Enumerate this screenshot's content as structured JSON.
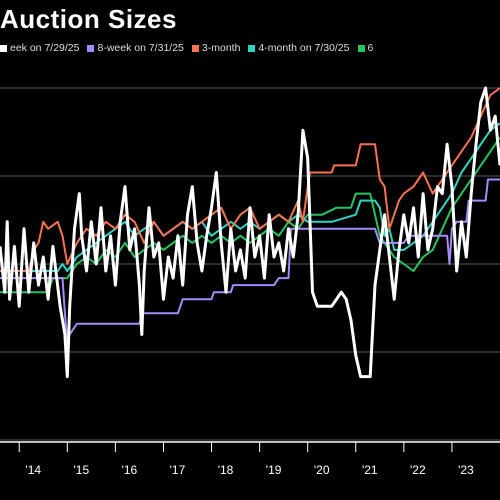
{
  "chart_data": {
    "type": "line",
    "title": "Auction Sizes",
    "xlabel": "",
    "ylabel": "",
    "x_ticks": [
      "'14",
      "'15",
      "'16",
      "'17",
      "'18",
      "'19",
      "'20",
      "'21",
      "'22",
      "'23"
    ],
    "xlim": [
      2013.6,
      2024.0
    ],
    "ylim": [
      0,
      100
    ],
    "grid": "horizontal",
    "legend_position": "top",
    "series": [
      {
        "name": "eek on 7/29/25",
        "color": "#ffffff",
        "points": [
          [
            2013.6,
            55
          ],
          [
            2013.7,
            42
          ],
          [
            2013.75,
            62
          ],
          [
            2013.8,
            40
          ],
          [
            2013.9,
            55
          ],
          [
            2014.0,
            38
          ],
          [
            2014.1,
            60
          ],
          [
            2014.2,
            42
          ],
          [
            2014.3,
            56
          ],
          [
            2014.4,
            44
          ],
          [
            2014.5,
            52
          ],
          [
            2014.6,
            40
          ],
          [
            2014.7,
            55
          ],
          [
            2014.85,
            38
          ],
          [
            2014.95,
            30
          ],
          [
            2015.0,
            18
          ],
          [
            2015.05,
            38
          ],
          [
            2015.15,
            60
          ],
          [
            2015.25,
            70
          ],
          [
            2015.3,
            58
          ],
          [
            2015.4,
            48
          ],
          [
            2015.5,
            62
          ],
          [
            2015.6,
            50
          ],
          [
            2015.7,
            66
          ],
          [
            2015.8,
            48
          ],
          [
            2015.9,
            58
          ],
          [
            2016.0,
            44
          ],
          [
            2016.1,
            62
          ],
          [
            2016.2,
            72
          ],
          [
            2016.3,
            54
          ],
          [
            2016.4,
            60
          ],
          [
            2016.5,
            44
          ],
          [
            2016.55,
            30
          ],
          [
            2016.6,
            48
          ],
          [
            2016.7,
            66
          ],
          [
            2016.8,
            52
          ],
          [
            2016.9,
            56
          ],
          [
            2017.0,
            40
          ],
          [
            2017.1,
            52
          ],
          [
            2017.2,
            46
          ],
          [
            2017.3,
            58
          ],
          [
            2017.4,
            44
          ],
          [
            2017.5,
            64
          ],
          [
            2017.6,
            72
          ],
          [
            2017.7,
            56
          ],
          [
            2017.8,
            48
          ],
          [
            2017.9,
            58
          ],
          [
            2018.0,
            66
          ],
          [
            2018.1,
            76
          ],
          [
            2018.2,
            56
          ],
          [
            2018.3,
            42
          ],
          [
            2018.4,
            60
          ],
          [
            2018.5,
            48
          ],
          [
            2018.6,
            54
          ],
          [
            2018.7,
            46
          ],
          [
            2018.8,
            66
          ],
          [
            2018.9,
            52
          ],
          [
            2019.0,
            58
          ],
          [
            2019.1,
            46
          ],
          [
            2019.2,
            64
          ],
          [
            2019.3,
            52
          ],
          [
            2019.4,
            56
          ],
          [
            2019.5,
            48
          ],
          [
            2019.6,
            60
          ],
          [
            2019.7,
            52
          ],
          [
            2019.8,
            64
          ],
          [
            2019.9,
            88
          ],
          [
            2020.0,
            80
          ],
          [
            2020.1,
            42
          ],
          [
            2020.2,
            38
          ],
          [
            2020.3,
            38
          ],
          [
            2020.5,
            38
          ],
          [
            2020.7,
            42
          ],
          [
            2020.8,
            40
          ],
          [
            2020.9,
            34
          ],
          [
            2021.0,
            24
          ],
          [
            2021.1,
            18
          ],
          [
            2021.3,
            18
          ],
          [
            2021.4,
            44
          ],
          [
            2021.6,
            64
          ],
          [
            2021.7,
            52
          ],
          [
            2021.8,
            40
          ],
          [
            2021.9,
            54
          ],
          [
            2022.0,
            64
          ],
          [
            2022.1,
            56
          ],
          [
            2022.2,
            66
          ],
          [
            2022.3,
            52
          ],
          [
            2022.4,
            70
          ],
          [
            2022.5,
            54
          ],
          [
            2022.6,
            60
          ],
          [
            2022.7,
            72
          ],
          [
            2022.8,
            70
          ],
          [
            2022.9,
            84
          ],
          [
            2023.0,
            72
          ],
          [
            2023.1,
            48
          ],
          [
            2023.2,
            62
          ],
          [
            2023.3,
            52
          ],
          [
            2023.4,
            70
          ],
          [
            2023.5,
            84
          ],
          [
            2023.6,
            96
          ],
          [
            2023.7,
            100
          ],
          [
            2023.8,
            88
          ],
          [
            2023.9,
            92
          ],
          [
            2024.0,
            78
          ]
        ]
      },
      {
        "name": "8-week on 7/31/25",
        "color": "#a78bfa",
        "points": [
          [
            2013.6,
            46
          ],
          [
            2014.9,
            46
          ],
          [
            2014.95,
            36
          ],
          [
            2015.0,
            28
          ],
          [
            2015.05,
            30
          ],
          [
            2015.2,
            33
          ],
          [
            2016.5,
            33
          ],
          [
            2016.55,
            36
          ],
          [
            2017.3,
            36
          ],
          [
            2017.4,
            40
          ],
          [
            2018.0,
            40
          ],
          [
            2018.05,
            42
          ],
          [
            2018.4,
            42
          ],
          [
            2018.45,
            44
          ],
          [
            2019.3,
            44
          ],
          [
            2019.4,
            46
          ],
          [
            2019.6,
            46
          ],
          [
            2019.65,
            60
          ],
          [
            2020.0,
            60
          ],
          [
            2021.4,
            60
          ],
          [
            2021.5,
            56
          ],
          [
            2022.0,
            56
          ],
          [
            2022.1,
            58
          ],
          [
            2022.9,
            58
          ],
          [
            2022.95,
            50
          ],
          [
            2023.0,
            60
          ],
          [
            2023.1,
            62
          ],
          [
            2023.3,
            62
          ],
          [
            2023.35,
            68
          ],
          [
            2023.7,
            68
          ],
          [
            2023.75,
            74
          ],
          [
            2024.0,
            74
          ]
        ]
      },
      {
        "name": "3-month",
        "color": "#f97352",
        "points": [
          [
            2013.6,
            48
          ],
          [
            2014.2,
            48
          ],
          [
            2014.3,
            54
          ],
          [
            2014.4,
            56
          ],
          [
            2014.5,
            62
          ],
          [
            2014.6,
            60
          ],
          [
            2014.8,
            62
          ],
          [
            2014.9,
            58
          ],
          [
            2015.0,
            50
          ],
          [
            2015.2,
            56
          ],
          [
            2015.4,
            60
          ],
          [
            2015.6,
            58
          ],
          [
            2015.8,
            62
          ],
          [
            2016.0,
            60
          ],
          [
            2016.2,
            64
          ],
          [
            2016.4,
            62
          ],
          [
            2016.6,
            56
          ],
          [
            2016.8,
            62
          ],
          [
            2017.0,
            58
          ],
          [
            2017.2,
            60
          ],
          [
            2017.4,
            62
          ],
          [
            2017.6,
            60
          ],
          [
            2017.8,
            62
          ],
          [
            2018.0,
            64
          ],
          [
            2018.2,
            66
          ],
          [
            2018.4,
            60
          ],
          [
            2018.6,
            64
          ],
          [
            2018.8,
            66
          ],
          [
            2019.0,
            60
          ],
          [
            2019.2,
            62
          ],
          [
            2019.4,
            64
          ],
          [
            2019.6,
            62
          ],
          [
            2019.8,
            68
          ],
          [
            2019.9,
            62
          ],
          [
            2020.0,
            72
          ],
          [
            2020.05,
            76
          ],
          [
            2020.5,
            76
          ],
          [
            2020.55,
            78
          ],
          [
            2021.0,
            78
          ],
          [
            2021.1,
            84
          ],
          [
            2021.4,
            84
          ],
          [
            2021.5,
            74
          ],
          [
            2021.6,
            72
          ],
          [
            2021.7,
            60
          ],
          [
            2021.8,
            64
          ],
          [
            2021.9,
            68
          ],
          [
            2022.0,
            70
          ],
          [
            2022.2,
            72
          ],
          [
            2022.4,
            76
          ],
          [
            2022.6,
            70
          ],
          [
            2022.8,
            74
          ],
          [
            2023.0,
            78
          ],
          [
            2023.2,
            82
          ],
          [
            2023.4,
            86
          ],
          [
            2023.6,
            92
          ],
          [
            2023.8,
            98
          ],
          [
            2024.0,
            102
          ]
        ]
      },
      {
        "name": "4-month on 7/30/25",
        "color": "#2dd4bf",
        "points": [
          [
            2013.6,
            48
          ],
          [
            2014.8,
            48
          ],
          [
            2014.9,
            50
          ],
          [
            2015.0,
            48
          ],
          [
            2015.2,
            52
          ],
          [
            2015.4,
            54
          ],
          [
            2015.6,
            56
          ],
          [
            2015.8,
            58
          ],
          [
            2016.0,
            60
          ],
          [
            2016.2,
            62
          ],
          [
            2016.4,
            58
          ],
          [
            2016.6,
            60
          ],
          [
            2016.8,
            62
          ],
          [
            2017.0,
            58
          ],
          [
            2017.2,
            60
          ],
          [
            2017.4,
            62
          ],
          [
            2017.6,
            60
          ],
          [
            2017.8,
            62
          ],
          [
            2018.0,
            58
          ],
          [
            2018.2,
            60
          ],
          [
            2018.4,
            62
          ],
          [
            2018.6,
            60
          ],
          [
            2018.8,
            62
          ],
          [
            2019.0,
            60
          ],
          [
            2019.2,
            62
          ],
          [
            2019.4,
            64
          ],
          [
            2019.6,
            62
          ],
          [
            2019.8,
            64
          ],
          [
            2020.0,
            62
          ],
          [
            2020.5,
            62
          ],
          [
            2021.0,
            64
          ],
          [
            2021.1,
            68
          ],
          [
            2021.4,
            68
          ],
          [
            2021.5,
            66
          ],
          [
            2021.6,
            58
          ],
          [
            2021.7,
            60
          ],
          [
            2021.8,
            54
          ],
          [
            2022.0,
            54
          ],
          [
            2022.2,
            56
          ],
          [
            2022.4,
            58
          ],
          [
            2022.6,
            62
          ],
          [
            2022.8,
            66
          ],
          [
            2023.0,
            70
          ],
          [
            2023.2,
            76
          ],
          [
            2023.4,
            80
          ],
          [
            2023.6,
            84
          ],
          [
            2023.8,
            88
          ],
          [
            2024.0,
            90
          ]
        ]
      },
      {
        "name": "6",
        "color": "#22c55e",
        "points": [
          [
            2013.6,
            42
          ],
          [
            2014.6,
            42
          ],
          [
            2014.7,
            46
          ],
          [
            2015.0,
            46
          ],
          [
            2015.2,
            50
          ],
          [
            2015.4,
            52
          ],
          [
            2015.6,
            50
          ],
          [
            2015.8,
            54
          ],
          [
            2016.0,
            52
          ],
          [
            2016.2,
            56
          ],
          [
            2016.4,
            52
          ],
          [
            2016.6,
            54
          ],
          [
            2016.8,
            56
          ],
          [
            2017.0,
            54
          ],
          [
            2017.2,
            56
          ],
          [
            2017.4,
            58
          ],
          [
            2017.6,
            56
          ],
          [
            2017.8,
            58
          ],
          [
            2018.0,
            56
          ],
          [
            2018.2,
            58
          ],
          [
            2018.4,
            56
          ],
          [
            2018.6,
            58
          ],
          [
            2018.8,
            56
          ],
          [
            2019.0,
            58
          ],
          [
            2019.2,
            60
          ],
          [
            2019.4,
            58
          ],
          [
            2019.6,
            62
          ],
          [
            2019.8,
            60
          ],
          [
            2020.0,
            64
          ],
          [
            2020.3,
            64
          ],
          [
            2020.6,
            66
          ],
          [
            2020.9,
            66
          ],
          [
            2021.0,
            70
          ],
          [
            2021.3,
            70
          ],
          [
            2021.4,
            64
          ],
          [
            2021.5,
            58
          ],
          [
            2021.6,
            56
          ],
          [
            2021.8,
            52
          ],
          [
            2022.0,
            50
          ],
          [
            2022.2,
            48
          ],
          [
            2022.4,
            52
          ],
          [
            2022.6,
            54
          ],
          [
            2022.8,
            60
          ],
          [
            2023.0,
            66
          ],
          [
            2023.2,
            70
          ],
          [
            2023.4,
            74
          ],
          [
            2023.6,
            78
          ],
          [
            2023.8,
            82
          ],
          [
            2024.0,
            86
          ]
        ]
      }
    ]
  }
}
